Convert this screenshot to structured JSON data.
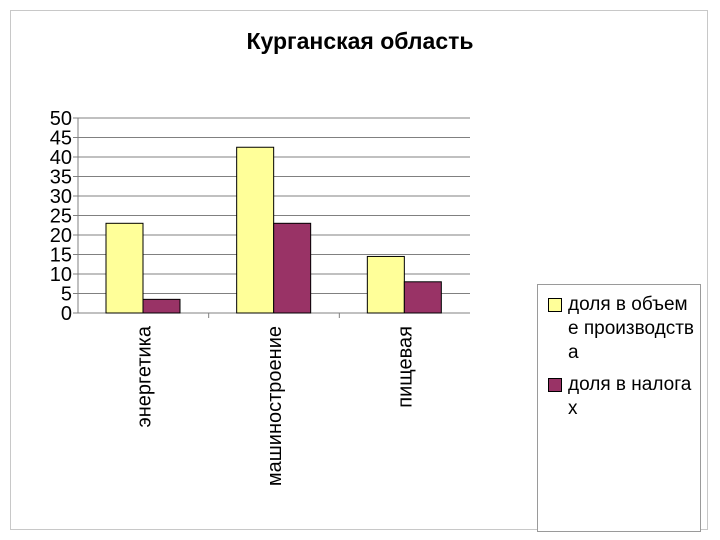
{
  "chart_data": {
    "type": "bar",
    "title": "Курганская область",
    "categories": [
      "энергетика",
      "машиностроение",
      "пищевая"
    ],
    "series": [
      {
        "name": "доля в объеме производства",
        "values": [
          23,
          42.5,
          14.5
        ],
        "color": "#ffff99"
      },
      {
        "name": "доля в налогах",
        "values": [
          3.5,
          23,
          8
        ],
        "color": "#993366"
      }
    ],
    "yticks": [
      "0",
      "5",
      "10",
      "15",
      "20",
      "25",
      "30",
      "35",
      "40",
      "45",
      "50"
    ],
    "ylim": [
      0,
      50
    ],
    "grid": true,
    "legend": "right",
    "xlabel": "",
    "ylabel": ""
  }
}
